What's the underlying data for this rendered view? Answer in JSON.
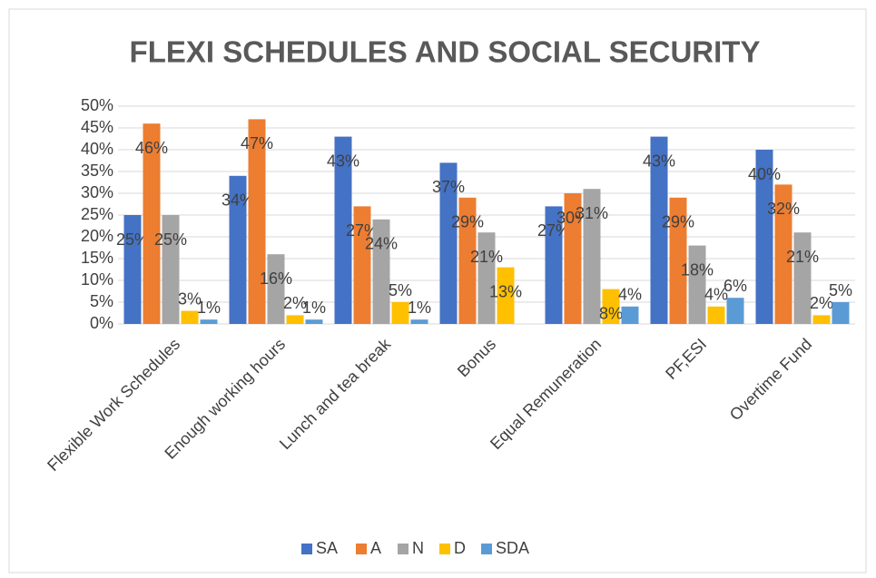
{
  "chart_data": {
    "type": "bar",
    "title": "FLEXI SCHEDULES AND SOCIAL SECURITY",
    "categories": [
      "Flexible Work Schedules",
      "Enough working hours",
      "Lunch and tea break",
      "Bonus",
      "Equal Remuneration",
      "PF,ESI",
      "Overtime Fund"
    ],
    "series": [
      {
        "name": "SA",
        "color": "#4472c4",
        "values": [
          25,
          34,
          43,
          37,
          27,
          43,
          40
        ],
        "value_labels": [
          "25%",
          "34%",
          "43%",
          "37%",
          "27%",
          "43%",
          "40%"
        ]
      },
      {
        "name": "A",
        "color": "#ed7d31",
        "values": [
          46,
          47,
          27,
          29,
          30,
          29,
          32
        ],
        "value_labels": [
          "46%",
          "47%",
          "27%",
          "29%",
          "30%",
          "29%",
          "32%"
        ]
      },
      {
        "name": "N",
        "color": "#a5a5a5",
        "values": [
          25,
          16,
          24,
          21,
          31,
          18,
          21
        ],
        "value_labels": [
          "25%",
          "16%",
          "24%",
          "21%",
          "31%",
          "18%",
          "21%"
        ]
      },
      {
        "name": "D",
        "color": "#ffc000",
        "values": [
          3,
          2,
          5,
          13,
          8,
          4,
          2
        ],
        "value_labels": [
          "3%",
          "2%",
          "5%",
          "13%",
          "8%",
          "4%",
          "2%"
        ]
      },
      {
        "name": "SDA",
        "color": "#5b9bd5",
        "values": [
          1,
          1,
          1,
          null,
          4,
          6,
          5
        ],
        "value_labels": [
          "1%",
          "1%",
          "1%",
          null,
          "4%",
          "6%",
          "5%"
        ]
      }
    ],
    "ylim": [
      0,
      50
    ],
    "yticks": [
      {
        "value": 0,
        "label": "0%"
      },
      {
        "value": 5,
        "label": "5%"
      },
      {
        "value": 10,
        "label": "10%"
      },
      {
        "value": 15,
        "label": "15%"
      },
      {
        "value": 20,
        "label": "20%"
      },
      {
        "value": 25,
        "label": "25%"
      },
      {
        "value": 30,
        "label": "30%"
      },
      {
        "value": 35,
        "label": "35%"
      },
      {
        "value": 40,
        "label": "40%"
      },
      {
        "value": 45,
        "label": "45%"
      },
      {
        "value": 50,
        "label": "50%"
      }
    ],
    "grid": true,
    "legend": "bottom"
  }
}
